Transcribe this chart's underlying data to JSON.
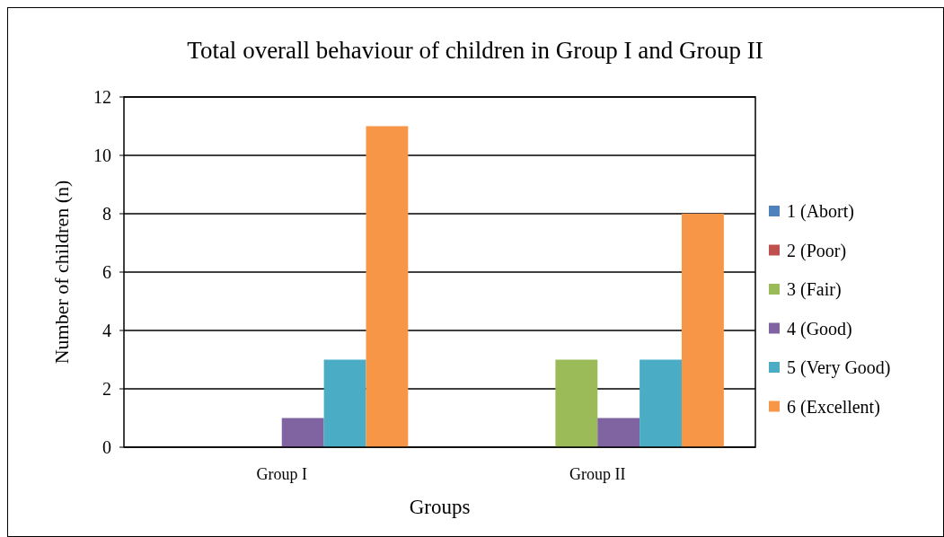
{
  "chart_data": {
    "type": "bar",
    "title": "Total overall behaviour of children in Group I and Group II",
    "xlabel": "Groups",
    "ylabel": "Number of children (n)",
    "categories": [
      "Group I",
      "Group II"
    ],
    "series": [
      {
        "name": "1 (Abort)",
        "color": "#4f81bd",
        "values": [
          0,
          0
        ]
      },
      {
        "name": "2 (Poor)",
        "color": "#c0504d",
        "values": [
          0,
          0
        ]
      },
      {
        "name": "3 (Fair)",
        "color": "#9bbb59",
        "values": [
          0,
          3
        ]
      },
      {
        "name": "4 (Good)",
        "color": "#8064a2",
        "values": [
          1,
          1
        ]
      },
      {
        "name": "5 (Very Good)",
        "color": "#4bacc6",
        "values": [
          3,
          3
        ]
      },
      {
        "name": "6 (Excellent)",
        "color": "#f79646",
        "values": [
          11,
          8
        ]
      }
    ],
    "ylim": [
      0,
      12
    ],
    "yticks": [
      0,
      2,
      4,
      6,
      8,
      10,
      12
    ],
    "grid": "y",
    "legend": "right"
  }
}
